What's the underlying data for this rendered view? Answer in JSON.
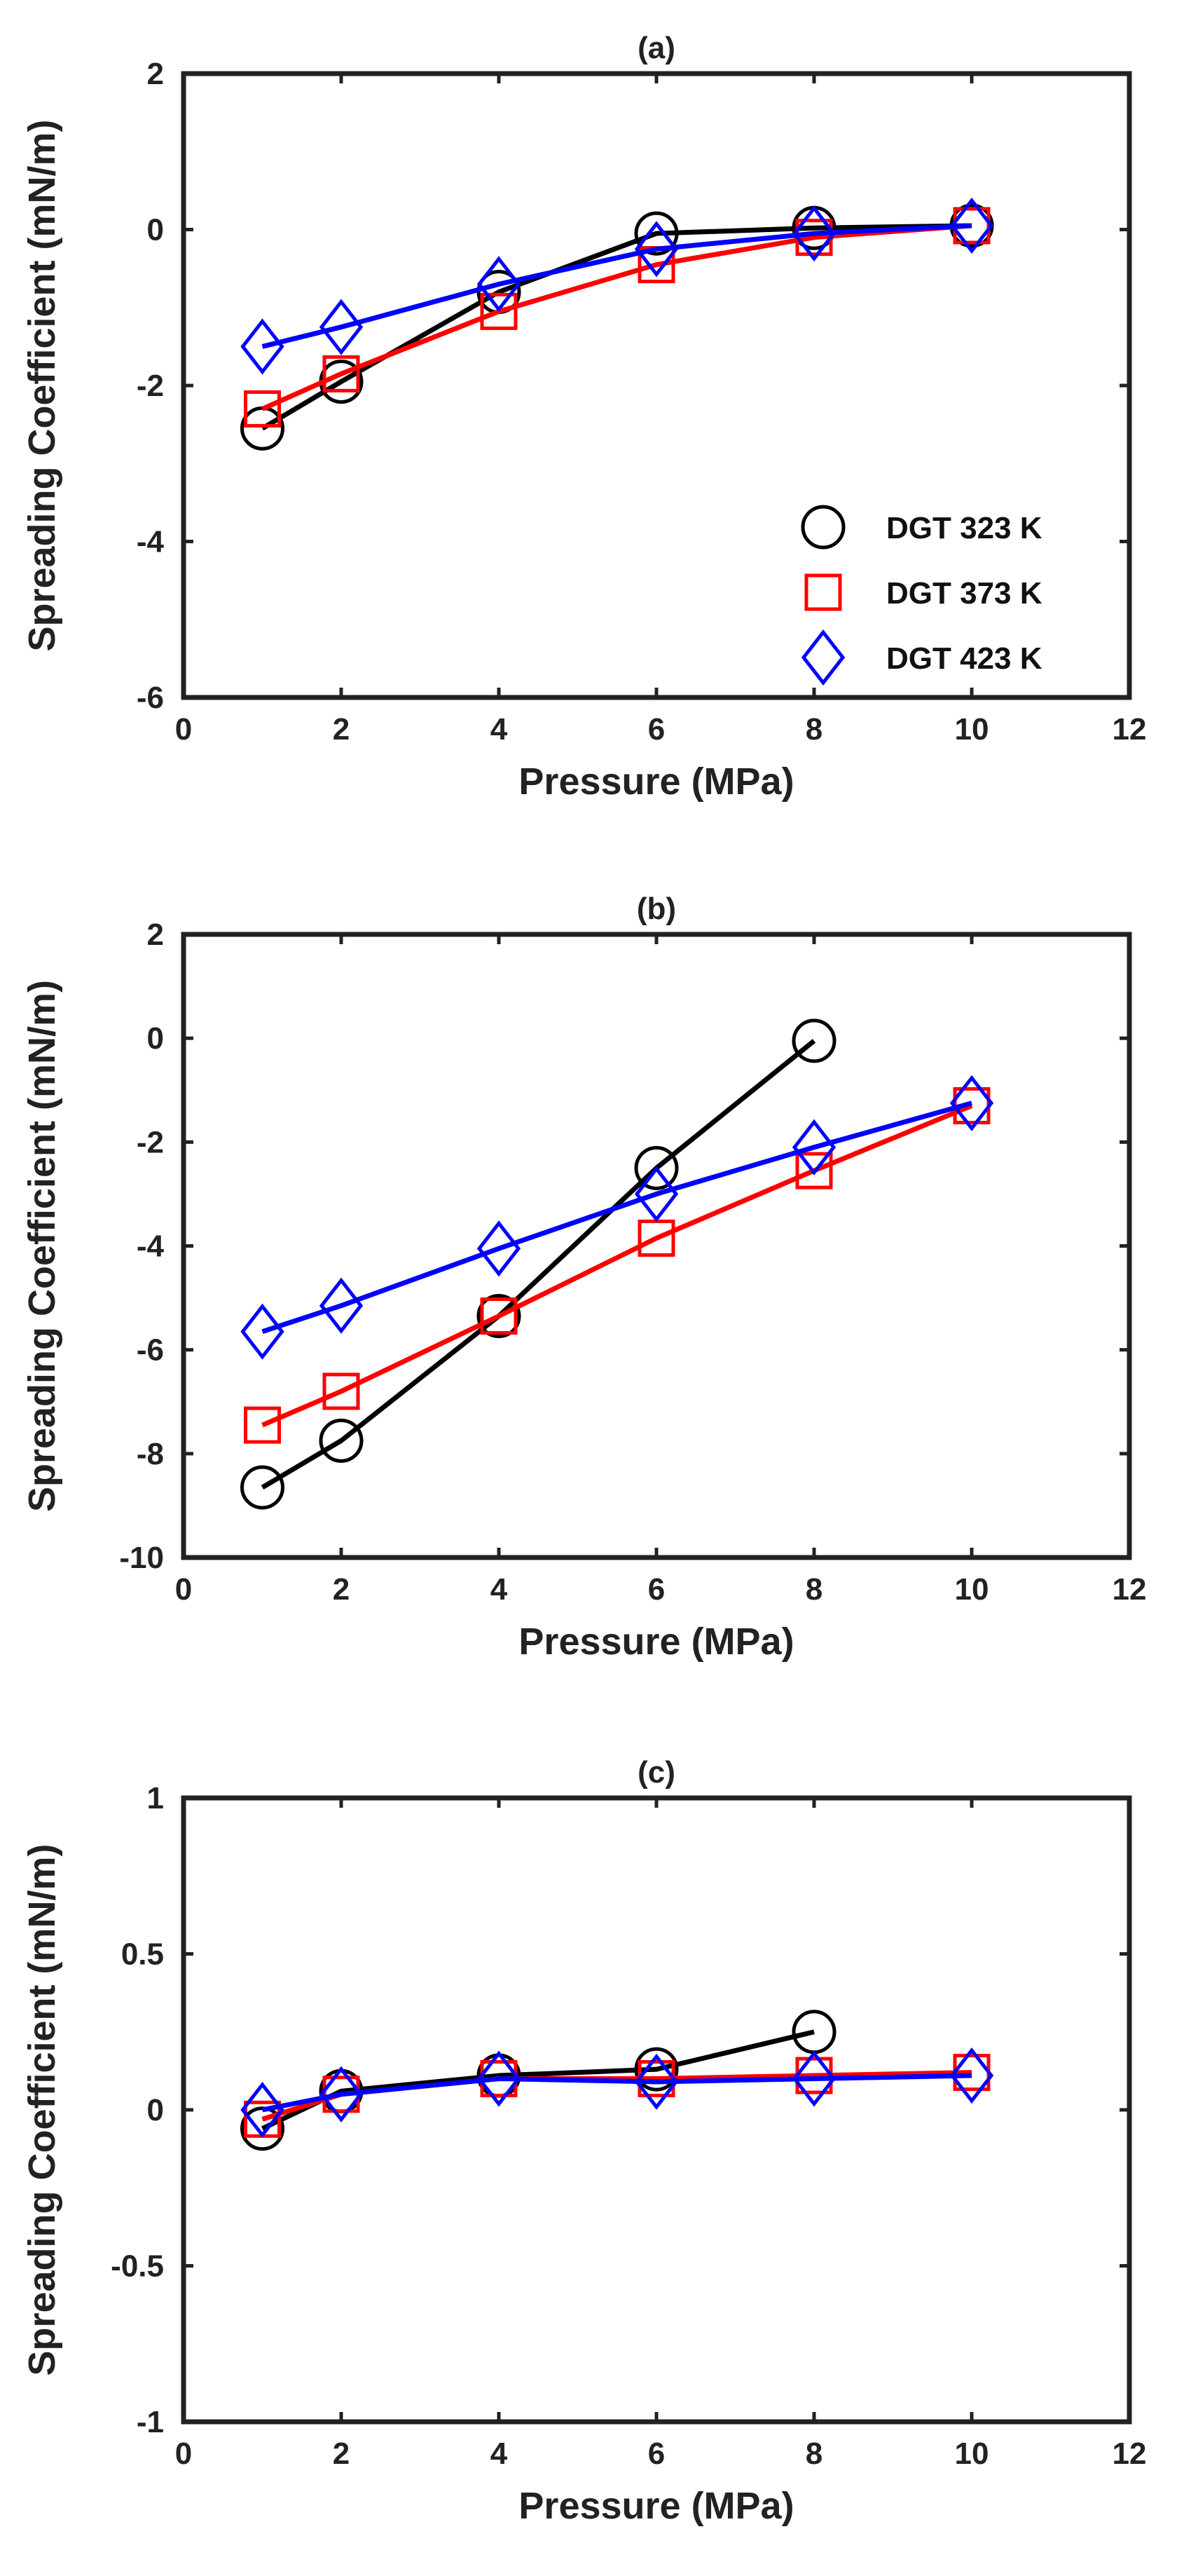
{
  "chart_data": [
    {
      "type": "line",
      "title": "(a)",
      "xlabel": "Pressure (MPa)",
      "ylabel": "Spreading Coefficient (mN/m)",
      "xlim": [
        0,
        12
      ],
      "ylim": [
        -6,
        2
      ],
      "xticks": [
        "0",
        "2",
        "4",
        "6",
        "8",
        "10",
        "12"
      ],
      "yticks": [
        "-6",
        "-4",
        "-2",
        "0",
        "2"
      ],
      "legend_position": "bottom-right",
      "series": [
        {
          "name": "DGT 323 K",
          "color": "#000000",
          "marker": "circle",
          "x": [
            1,
            2,
            4,
            6,
            8,
            10
          ],
          "y": [
            -2.55,
            -1.95,
            -0.8,
            -0.05,
            0.02,
            0.05
          ]
        },
        {
          "name": "DGT 373 K",
          "color": "#ff0000",
          "marker": "square",
          "x": [
            1,
            2,
            4,
            6,
            8,
            10
          ],
          "y": [
            -2.3,
            -1.85,
            -1.05,
            -0.45,
            -0.1,
            0.05
          ]
        },
        {
          "name": "DGT 423 K",
          "color": "#0000ff",
          "marker": "diamond",
          "x": [
            1,
            2,
            4,
            6,
            8,
            10
          ],
          "y": [
            -1.5,
            -1.25,
            -0.7,
            -0.25,
            -0.05,
            0.05
          ]
        }
      ]
    },
    {
      "type": "line",
      "title": "(b)",
      "xlabel": "Pressure (MPa)",
      "ylabel": "Spreading Coefficient (mN/m)",
      "xlim": [
        0,
        12
      ],
      "ylim": [
        -10,
        2
      ],
      "xticks": [
        "0",
        "2",
        "4",
        "6",
        "8",
        "10",
        "12"
      ],
      "yticks": [
        "-10",
        "-8",
        "-6",
        "-4",
        "-2",
        "0",
        "2"
      ],
      "series": [
        {
          "name": "DGT 323 K",
          "color": "#000000",
          "marker": "circle",
          "x": [
            1,
            2,
            4,
            6,
            8
          ],
          "y": [
            -8.65,
            -7.75,
            -5.35,
            -2.5,
            -0.05
          ]
        },
        {
          "name": "DGT 373 K",
          "color": "#ff0000",
          "marker": "square",
          "x": [
            1,
            2,
            4,
            6,
            8,
            10
          ],
          "y": [
            -7.45,
            -6.8,
            -5.35,
            -3.85,
            -2.55,
            -1.3
          ]
        },
        {
          "name": "DGT 423 K",
          "color": "#0000ff",
          "marker": "diamond",
          "x": [
            1,
            2,
            4,
            6,
            8,
            10
          ],
          "y": [
            -5.65,
            -5.15,
            -4.05,
            -3.0,
            -2.1,
            -1.25
          ]
        }
      ]
    },
    {
      "type": "line",
      "title": "(c)",
      "xlabel": "Pressure (MPa)",
      "ylabel": "Spreading Coefficient (mN/m)",
      "xlim": [
        0,
        12
      ],
      "ylim": [
        -1,
        1
      ],
      "xticks": [
        "0",
        "2",
        "4",
        "6",
        "8",
        "10",
        "12"
      ],
      "yticks": [
        "-1",
        "-0.5",
        "0",
        "0.5",
        "1"
      ],
      "series": [
        {
          "name": "DGT 323 K",
          "color": "#000000",
          "marker": "circle",
          "x": [
            1,
            2,
            4,
            6,
            8
          ],
          "y": [
            -0.06,
            0.06,
            0.11,
            0.13,
            0.25
          ]
        },
        {
          "name": "DGT 373 K",
          "color": "#ff0000",
          "marker": "square",
          "x": [
            1,
            2,
            4,
            6,
            8,
            10
          ],
          "y": [
            -0.03,
            0.05,
            0.1,
            0.1,
            0.11,
            0.12
          ]
        },
        {
          "name": "DGT 423 K",
          "color": "#0000ff",
          "marker": "diamond",
          "x": [
            1,
            2,
            4,
            6,
            8,
            10
          ],
          "y": [
            0.0,
            0.05,
            0.1,
            0.09,
            0.1,
            0.11
          ]
        }
      ]
    }
  ]
}
